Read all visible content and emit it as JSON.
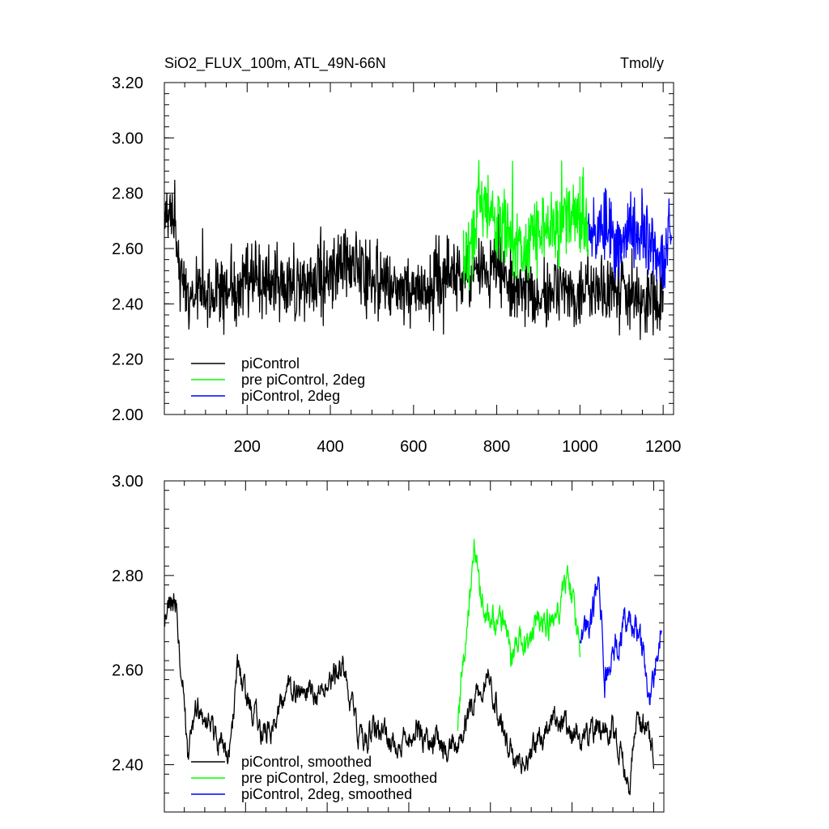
{
  "chart_data": [
    {
      "type": "line",
      "title": "SiO2_FLUX_100m, ATL_49N-66N",
      "units": "Tmol/y",
      "xlabel": "",
      "ylabel": "",
      "xlim": [
        1,
        1225
      ],
      "ylim": [
        2.0,
        3.2
      ],
      "yticks": [
        "2.00",
        "2.20",
        "2.40",
        "2.60",
        "2.80",
        "3.00",
        "3.20"
      ],
      "xticks": [
        "200",
        "400",
        "600",
        "800",
        "1000",
        "1200"
      ],
      "series": [
        {
          "name": "piControl",
          "color": "#000000",
          "x_start": 1,
          "x_end": 1200,
          "level": 2.48,
          "amplitude": 0.09,
          "anchors": [
            [
              1,
              2.72
            ],
            [
              25,
              2.7
            ],
            [
              40,
              2.5
            ],
            [
              60,
              2.4
            ],
            [
              100,
              2.46
            ],
            [
              150,
              2.44
            ],
            [
              200,
              2.5
            ],
            [
              300,
              2.47
            ],
            [
              400,
              2.51
            ],
            [
              450,
              2.55
            ],
            [
              500,
              2.48
            ],
            [
              600,
              2.43
            ],
            [
              650,
              2.47
            ],
            [
              700,
              2.5
            ],
            [
              760,
              2.52
            ],
            [
              800,
              2.54
            ],
            [
              860,
              2.45
            ],
            [
              900,
              2.44
            ],
            [
              1000,
              2.45
            ],
            [
              1100,
              2.46
            ],
            [
              1150,
              2.4
            ],
            [
              1200,
              2.43
            ]
          ]
        },
        {
          "name": "pre piControl, 2deg",
          "color": "#00ff00",
          "x_start": 720,
          "x_end": 1020,
          "level": 2.67,
          "amplitude": 0.1,
          "anchors": [
            [
              720,
              2.5
            ],
            [
              760,
              2.78
            ],
            [
              800,
              2.7
            ],
            [
              850,
              2.62
            ],
            [
              900,
              2.66
            ],
            [
              950,
              2.68
            ],
            [
              1000,
              2.72
            ],
            [
              1020,
              2.66
            ]
          ]
        },
        {
          "name": "piControl, 2deg",
          "color": "#0000ff",
          "x_start": 1020,
          "x_end": 1220,
          "level": 2.64,
          "amplitude": 0.09,
          "anchors": [
            [
              1020,
              2.64
            ],
            [
              1060,
              2.7
            ],
            [
              1090,
              2.58
            ],
            [
              1130,
              2.7
            ],
            [
              1170,
              2.62
            ],
            [
              1200,
              2.55
            ],
            [
              1220,
              2.7
            ]
          ]
        }
      ],
      "legend": {
        "position": "bottom-left",
        "entries": [
          "piControl",
          "pre piControl, 2deg",
          "piControl, 2deg"
        ]
      }
    },
    {
      "type": "line",
      "title": "",
      "xlabel": "",
      "ylabel": "",
      "xlim": [
        1,
        1225
      ],
      "ylim": [
        2.3,
        3.0
      ],
      "yticks": [
        "2.40",
        "2.60",
        "2.80",
        "3.00"
      ],
      "xticks": [],
      "series": [
        {
          "name": "piControl, smoothed",
          "color": "#000000",
          "x_start": 1,
          "x_end": 1200,
          "level": 2.5,
          "amplitude": 0.035,
          "anchors": [
            [
              1,
              2.71
            ],
            [
              10,
              2.75
            ],
            [
              30,
              2.74
            ],
            [
              45,
              2.58
            ],
            [
              60,
              2.4
            ],
            [
              80,
              2.52
            ],
            [
              120,
              2.46
            ],
            [
              160,
              2.42
            ],
            [
              180,
              2.6
            ],
            [
              200,
              2.54
            ],
            [
              250,
              2.46
            ],
            [
              280,
              2.52
            ],
            [
              320,
              2.56
            ],
            [
              360,
              2.55
            ],
            [
              400,
              2.58
            ],
            [
              440,
              2.6
            ],
            [
              480,
              2.46
            ],
            [
              520,
              2.48
            ],
            [
              560,
              2.44
            ],
            [
              620,
              2.47
            ],
            [
              680,
              2.44
            ],
            [
              720,
              2.46
            ],
            [
              780,
              2.56
            ],
            [
              800,
              2.58
            ],
            [
              840,
              2.44
            ],
            [
              860,
              2.4
            ],
            [
              900,
              2.42
            ],
            [
              950,
              2.5
            ],
            [
              1000,
              2.47
            ],
            [
              1050,
              2.46
            ],
            [
              1100,
              2.48
            ],
            [
              1140,
              2.36
            ],
            [
              1160,
              2.5
            ],
            [
              1190,
              2.46
            ],
            [
              1200,
              2.43
            ]
          ]
        },
        {
          "name": "pre piControl, 2deg, smoothed",
          "color": "#00ff00",
          "x_start": 720,
          "x_end": 1020,
          "level": 2.7,
          "amplitude": 0.04,
          "anchors": [
            [
              720,
              2.49
            ],
            [
              740,
              2.68
            ],
            [
              760,
              2.86
            ],
            [
              780,
              2.74
            ],
            [
              800,
              2.73
            ],
            [
              830,
              2.7
            ],
            [
              850,
              2.62
            ],
            [
              880,
              2.66
            ],
            [
              920,
              2.7
            ],
            [
              960,
              2.72
            ],
            [
              990,
              2.8
            ],
            [
              1010,
              2.7
            ],
            [
              1020,
              2.65
            ]
          ]
        },
        {
          "name": "piControl, 2deg, smoothed",
          "color": "#0000ff",
          "x_start": 1020,
          "x_end": 1220,
          "level": 2.64,
          "amplitude": 0.04,
          "anchors": [
            [
              1020,
              2.65
            ],
            [
              1050,
              2.7
            ],
            [
              1065,
              2.8
            ],
            [
              1080,
              2.58
            ],
            [
              1100,
              2.62
            ],
            [
              1130,
              2.72
            ],
            [
              1150,
              2.7
            ],
            [
              1170,
              2.65
            ],
            [
              1190,
              2.55
            ],
            [
              1205,
              2.62
            ],
            [
              1220,
              2.72
            ]
          ]
        }
      ],
      "legend": {
        "position": "bottom-left",
        "entries": [
          "piControl, smoothed",
          "pre piControl, 2deg, smoothed",
          "piControl, 2deg, smoothed"
        ]
      }
    }
  ]
}
